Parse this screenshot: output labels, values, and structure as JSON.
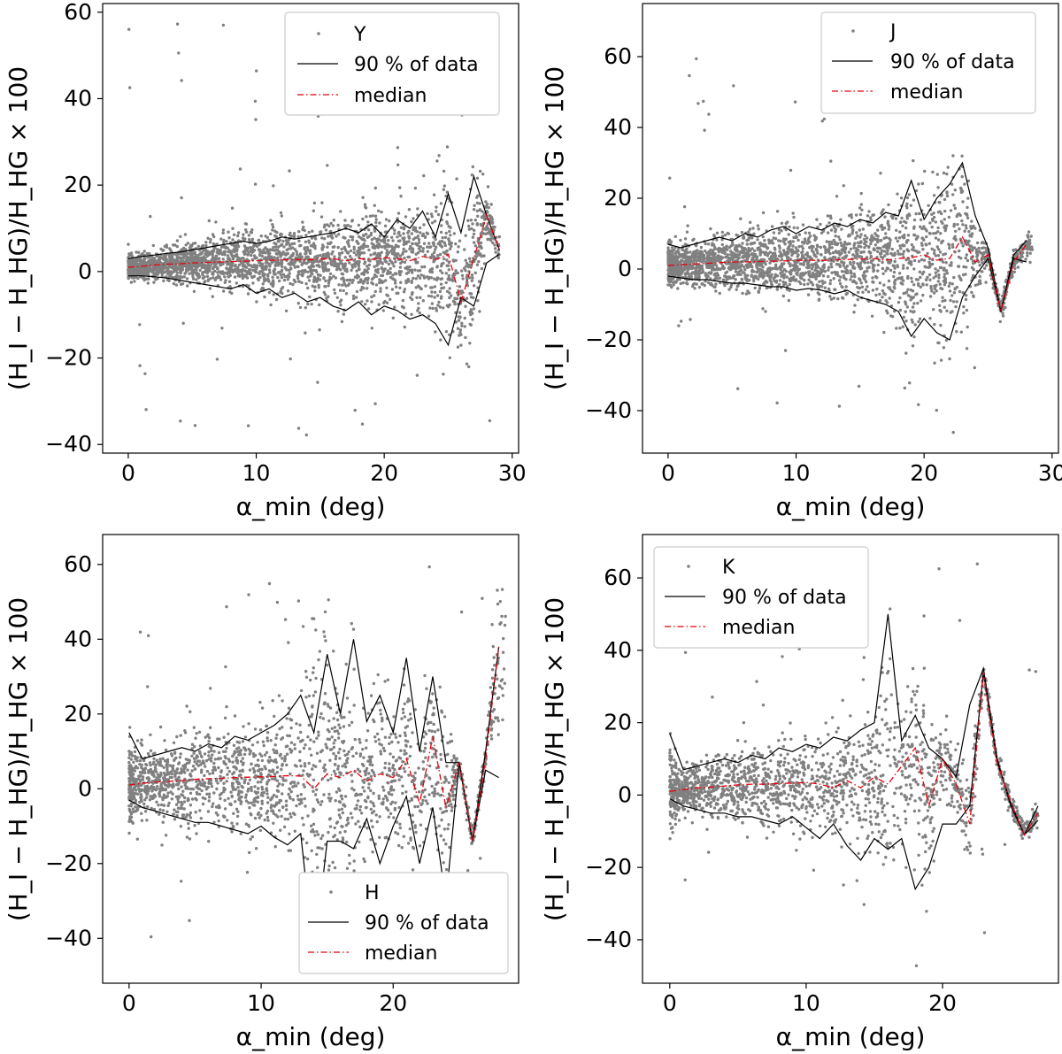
{
  "figure_layout": "2x2 grid of scatter plots",
  "colors": {
    "scatter": "#808080",
    "band": "#000000",
    "median": "#e8000b"
  },
  "chart_data": [
    {
      "type": "scatter",
      "panel": "top-left",
      "legend_title": "Y",
      "legend_labels": [
        "Y",
        "90 % of data",
        "median"
      ],
      "legend_position": "top-right",
      "xlabel": "α_min (deg)",
      "ylabel": "(H_I − H_HG)/H_HG × 100",
      "xlim": [
        -2,
        30.5
      ],
      "ylim": [
        -42,
        62
      ],
      "xticks": [
        0,
        10,
        20,
        30
      ],
      "yticks": [
        -40,
        -20,
        0,
        20,
        40,
        60
      ],
      "xtick_labels": [
        "0",
        "10",
        "20",
        "30"
      ],
      "ytick_labels": [
        "−40",
        "−20",
        "0",
        "20",
        "40",
        "60"
      ],
      "band_upper": {
        "x": [
          0,
          1,
          2,
          3,
          4,
          5,
          6,
          7,
          8,
          9,
          10,
          11,
          12,
          13,
          14,
          15,
          16,
          17,
          18,
          19,
          20,
          21,
          22,
          23,
          24,
          25,
          26,
          27,
          28,
          29
        ],
        "y": [
          3,
          3.5,
          3.8,
          4.2,
          4.5,
          5,
          5.5,
          6,
          6.5,
          7,
          6.5,
          7,
          8,
          7.5,
          8,
          8.5,
          9,
          10,
          9,
          11,
          8,
          12,
          10,
          14,
          8,
          18,
          9,
          22,
          13,
          5
        ]
      },
      "median": {
        "x": [
          0,
          1,
          2,
          3,
          4,
          5,
          6,
          7,
          8,
          9,
          10,
          11,
          12,
          13,
          14,
          15,
          16,
          17,
          18,
          19,
          20,
          21,
          22,
          23,
          24,
          25,
          26,
          27,
          28,
          29
        ],
        "y": [
          1,
          1.2,
          1.5,
          1.7,
          1.8,
          2,
          2.1,
          2.2,
          2.3,
          2.4,
          2.5,
          2.6,
          2.7,
          2.8,
          2.7,
          2.9,
          3,
          2.5,
          3,
          2.8,
          3.2,
          3,
          2.5,
          3.5,
          2.8,
          4,
          -7,
          3,
          13,
          5
        ]
      },
      "band_lower": {
        "x": [
          0,
          1,
          2,
          3,
          4,
          5,
          6,
          7,
          8,
          9,
          10,
          11,
          12,
          13,
          14,
          15,
          16,
          17,
          18,
          19,
          20,
          21,
          22,
          23,
          24,
          25,
          26,
          27,
          28,
          29
        ],
        "y": [
          -1,
          -1,
          -1.2,
          -1.5,
          -2,
          -2.5,
          -3,
          -3.5,
          -4,
          -3,
          -5,
          -4,
          -6,
          -5,
          -7,
          -6,
          -8,
          -9,
          -7,
          -10,
          -8,
          -9,
          -11,
          -10,
          -12,
          -17,
          -6,
          -8,
          2,
          4
        ]
      },
      "scatter": {
        "n_points": 2800,
        "x_range": [
          0,
          29
        ],
        "y_center": 2,
        "outlier_y_range": [
          -38,
          58
        ]
      }
    },
    {
      "type": "scatter",
      "panel": "top-right",
      "legend_title": "J",
      "legend_labels": [
        "J",
        "90 % of data",
        "median"
      ],
      "legend_position": "top-right",
      "xlabel": "α_min (deg)",
      "ylabel": "(H_I − H_HG)/H_HG × 100",
      "xlim": [
        -2,
        30.5
      ],
      "ylim": [
        -52,
        75
      ],
      "xticks": [
        0,
        10,
        20,
        30
      ],
      "yticks": [
        -40,
        -20,
        0,
        20,
        40,
        60
      ],
      "xtick_labels": [
        "0",
        "10",
        "20",
        "30"
      ],
      "ytick_labels": [
        "−40",
        "−20",
        "0",
        "20",
        "40",
        "60"
      ],
      "band_upper": {
        "x": [
          0,
          1,
          2,
          3,
          4,
          5,
          6,
          7,
          8,
          9,
          10,
          11,
          12,
          13,
          14,
          15,
          16,
          17,
          18,
          19,
          20,
          21,
          22,
          23,
          24,
          25,
          26,
          27,
          28
        ],
        "y": [
          7,
          6,
          7,
          8,
          9,
          8,
          10,
          9,
          11,
          12,
          10,
          12,
          11,
          13,
          12,
          14,
          13,
          16,
          15,
          25,
          14,
          20,
          24,
          30,
          15,
          6,
          -12,
          4,
          8
        ]
      },
      "median": {
        "x": [
          0,
          1,
          2,
          3,
          4,
          5,
          6,
          7,
          8,
          9,
          10,
          11,
          12,
          13,
          14,
          15,
          16,
          17,
          18,
          19,
          20,
          21,
          22,
          23,
          24,
          25,
          26,
          27,
          28
        ],
        "y": [
          1,
          1.2,
          1.4,
          1.6,
          1.8,
          2,
          2,
          2.1,
          2.2,
          2.3,
          2.4,
          2.5,
          2.4,
          2.6,
          2.7,
          2.8,
          3,
          2.5,
          3,
          3.2,
          4,
          2.5,
          3,
          9,
          2,
          4,
          -12,
          2,
          7
        ]
      },
      "band_lower": {
        "x": [
          0,
          1,
          2,
          3,
          4,
          5,
          6,
          7,
          8,
          9,
          10,
          11,
          12,
          13,
          14,
          15,
          16,
          17,
          18,
          19,
          20,
          21,
          22,
          23,
          24,
          25,
          26,
          27,
          28
        ],
        "y": [
          -2,
          -2.5,
          -3,
          -3,
          -3.5,
          -4,
          -4,
          -4.5,
          -5,
          -5,
          -6,
          -5.5,
          -6,
          -7,
          -6,
          -8,
          -9,
          -10,
          -12,
          -19,
          -14,
          -18,
          -20,
          -8,
          -2,
          3,
          -12,
          3,
          2
        ]
      },
      "scatter": {
        "n_points": 2600,
        "x_range": [
          0,
          28.5
        ],
        "y_center": 2,
        "outlier_y_range": [
          -46,
          66
        ]
      }
    },
    {
      "type": "scatter",
      "panel": "bottom-left",
      "legend_title": "H",
      "legend_labels": [
        "H",
        "90 % of data",
        "median"
      ],
      "legend_position": "lower-right",
      "xlabel": "α_min (deg)",
      "ylabel": "(H_I − H_HG)/H_HG × 100",
      "xlim": [
        -2,
        29.5
      ],
      "ylim": [
        -52,
        68
      ],
      "xticks": [
        0,
        10,
        20
      ],
      "yticks": [
        -40,
        -20,
        0,
        20,
        40,
        60
      ],
      "xtick_labels": [
        "0",
        "10",
        "20"
      ],
      "ytick_labels": [
        "−40",
        "−20",
        "0",
        "20",
        "40",
        "60"
      ],
      "band_upper": {
        "x": [
          0,
          1,
          2,
          3,
          4,
          5,
          6,
          7,
          8,
          9,
          10,
          11,
          12,
          13,
          14,
          15,
          16,
          17,
          18,
          19,
          20,
          21,
          22,
          23,
          24,
          25,
          26,
          27,
          28
        ],
        "y": [
          15,
          8,
          9,
          10,
          11,
          10,
          12,
          11,
          14,
          13,
          15,
          17,
          20,
          25,
          15,
          36,
          20,
          40,
          18,
          25,
          15,
          35,
          10,
          30,
          7,
          7,
          -14,
          10,
          38
        ]
      },
      "median": {
        "x": [
          0,
          1,
          2,
          3,
          4,
          5,
          6,
          7,
          8,
          9,
          10,
          11,
          12,
          13,
          14,
          15,
          16,
          17,
          18,
          19,
          20,
          21,
          22,
          23,
          24,
          25,
          26,
          27,
          28
        ],
        "y": [
          1,
          1.5,
          1.8,
          2,
          2.2,
          2.5,
          2.7,
          2.8,
          3,
          3.1,
          3.2,
          3.3,
          3.5,
          3.4,
          0,
          4,
          3,
          5,
          2,
          4,
          3,
          8,
          -4,
          14,
          -5,
          7,
          -14,
          8,
          38
        ]
      },
      "band_lower": {
        "x": [
          0,
          1,
          2,
          3,
          4,
          5,
          6,
          7,
          8,
          9,
          10,
          11,
          12,
          13,
          14,
          15,
          16,
          17,
          18,
          19,
          20,
          21,
          22,
          23,
          24,
          25,
          26,
          27,
          28
        ],
        "y": [
          -3,
          -5,
          -6,
          -7,
          -8,
          -9,
          -9,
          -10,
          -11,
          -12,
          -10,
          -13,
          -15,
          -12,
          -45,
          -14,
          -14,
          -16,
          -8,
          -20,
          -10,
          -2,
          -20,
          -5,
          -30,
          7,
          -14,
          5,
          3
        ]
      },
      "scatter": {
        "n_points": 2000,
        "x_range": [
          0,
          28.5
        ],
        "y_center": 3,
        "outlier_y_range": [
          -50,
          61
        ]
      }
    },
    {
      "type": "scatter",
      "panel": "bottom-right",
      "legend_title": "K",
      "legend_labels": [
        "K",
        "90 % of data",
        "median"
      ],
      "legend_position": "top-left",
      "xlabel": "α_min (deg)",
      "ylabel": "(H_I − H_HG)/H_HG × 100",
      "xlim": [
        -2,
        28.5
      ],
      "ylim": [
        -52,
        72
      ],
      "xticks": [
        0,
        10,
        20
      ],
      "yticks": [
        -40,
        -20,
        0,
        20,
        40,
        60
      ],
      "xtick_labels": [
        "0",
        "10",
        "20"
      ],
      "ytick_labels": [
        "−40",
        "−20",
        "0",
        "20",
        "40",
        "60"
      ],
      "band_upper": {
        "x": [
          0,
          1,
          2,
          3,
          4,
          5,
          6,
          7,
          8,
          9,
          10,
          11,
          12,
          13,
          14,
          15,
          16,
          17,
          18,
          19,
          20,
          21,
          22,
          23,
          24,
          25,
          26,
          27
        ],
        "y": [
          17,
          7,
          8,
          9,
          10,
          9,
          11,
          10,
          13,
          12,
          14,
          13,
          16,
          15,
          18,
          20,
          50,
          15,
          22,
          13,
          10,
          5,
          25,
          35,
          10,
          -3,
          -11,
          -3
        ]
      },
      "median": {
        "x": [
          0,
          1,
          2,
          3,
          4,
          5,
          6,
          7,
          8,
          9,
          10,
          11,
          12,
          13,
          14,
          15,
          16,
          17,
          18,
          19,
          20,
          21,
          22,
          23,
          24,
          25,
          26,
          27
        ],
        "y": [
          1,
          1.5,
          2,
          2.2,
          2.5,
          2.8,
          3,
          3,
          3.2,
          3.3,
          3.5,
          3,
          2,
          4,
          2,
          5,
          3,
          8,
          13,
          -3,
          10,
          3,
          -8,
          34,
          9,
          -2,
          -11,
          -5
        ]
      },
      "band_lower": {
        "x": [
          0,
          1,
          2,
          3,
          4,
          5,
          6,
          7,
          8,
          9,
          10,
          11,
          12,
          13,
          14,
          15,
          16,
          17,
          18,
          19,
          20,
          21,
          22,
          23,
          24,
          25,
          26,
          27
        ],
        "y": [
          -1,
          -3,
          -4,
          -5,
          -5,
          -6,
          -6,
          -7,
          -8,
          -6,
          -9,
          -12,
          -8,
          -14,
          -18,
          -12,
          -15,
          -12,
          -26,
          -20,
          -8,
          -8,
          -3,
          34,
          9,
          -2,
          -11,
          -7
        ]
      },
      "scatter": {
        "n_points": 1900,
        "x_range": [
          0,
          27
        ],
        "y_center": 3,
        "outlier_y_range": [
          -48,
          66
        ]
      }
    }
  ]
}
